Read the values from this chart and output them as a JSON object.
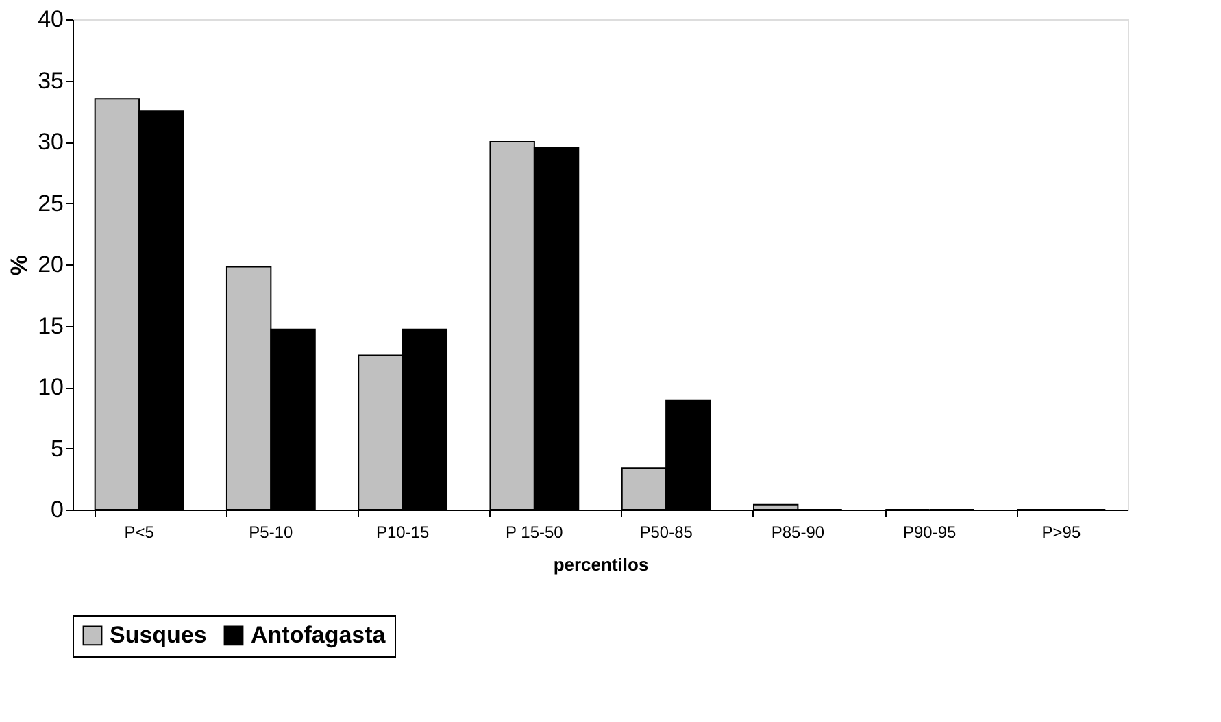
{
  "chart_data": {
    "type": "bar",
    "xlabel": "percentilos",
    "ylabel": "%",
    "categories": [
      "P<5",
      "P5-10",
      "P10-15",
      "P 15-50",
      "P50-85",
      "P85-90",
      "P90-95",
      "P>95"
    ],
    "series": [
      {
        "name": "Susques",
        "color": "#c0c0c0",
        "values": [
          33.5,
          19.8,
          12.6,
          30.0,
          3.4,
          0.4,
          0,
          0
        ]
      },
      {
        "name": "Antofagasta",
        "color": "#000000",
        "values": [
          32.5,
          14.7,
          14.7,
          29.5,
          8.9,
          0,
          0,
          0
        ]
      }
    ],
    "ylim": [
      0,
      40
    ],
    "yticks": [
      0,
      5,
      10,
      15,
      20,
      25,
      30,
      35,
      40
    ],
    "grid": false,
    "legend": "bottom"
  }
}
